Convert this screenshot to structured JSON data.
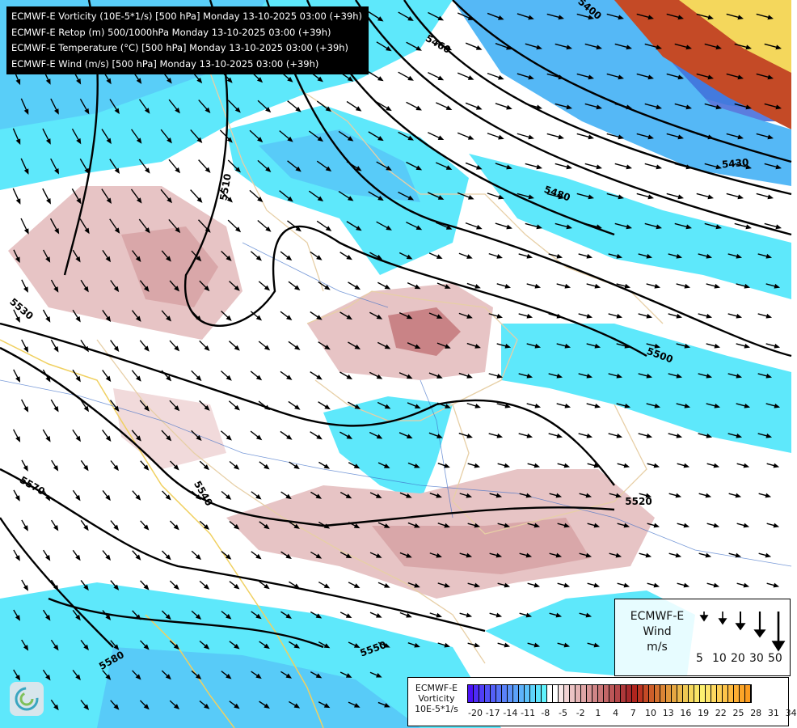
{
  "header": {
    "lines": [
      "ECMWF-E Vorticity (10E-5*1/s) [500 hPa] Monday 13-10-2025 03:00 (+39h)",
      "ECMWF-E Retop (m) 500/1000hPa Monday 13-10-2025 03:00 (+39h)",
      "ECMWF-E Temperature (°C) [500 hPa] Monday 13-10-2025 03:00 (+39h)",
      "ECMWF-E Wind (m/s) [500 hPa] Monday 13-10-2025 03:00 (+39h)"
    ]
  },
  "contour_labels": [
    "5400",
    "5460",
    "5430",
    "5480",
    "5510",
    "5530",
    "5500",
    "5520",
    "5540",
    "5570",
    "5550",
    "5580"
  ],
  "wind_legend": {
    "title": [
      "ECMWF-E",
      "Wind",
      "m/s"
    ],
    "speeds": [
      "5",
      "10",
      "20",
      "30",
      "50"
    ]
  },
  "vorticity_legend": {
    "title": [
      "ECMWF-E",
      "Vorticity",
      "10E-5*1/s"
    ],
    "ticks": [
      "-20",
      "-17",
      "-14",
      "-11",
      "-8",
      "-5",
      "-2",
      "1",
      "4",
      "7",
      "10",
      "13",
      "16",
      "19",
      "22",
      "25",
      "28",
      "31",
      "34"
    ],
    "colors": [
      "#4b12f5",
      "#4e2cf6",
      "#503ef7",
      "#5150f7",
      "#5460f8",
      "#5672f8",
      "#5a82f9",
      "#5b92f9",
      "#5ca2fa",
      "#5eb2fa",
      "#5dc2fb",
      "#5fd3fb",
      "#5ee3fc",
      "#5ff3fd",
      "#ffffff",
      "#ffffff",
      "#f8e6e6",
      "#f1d2d3",
      "#ebc3c4",
      "#e4b3b4",
      "#dea5a6",
      "#d79495",
      "#d08587",
      "#c97677",
      "#c26667",
      "#bc5758",
      "#b4474a",
      "#ad383a",
      "#a5282b",
      "#b0251e",
      "#bb3421",
      "#c44a26",
      "#cd5e2a",
      "#d4712f",
      "#da8435",
      "#e0963b",
      "#e6a742",
      "#ebb84a",
      "#efc853",
      "#f4d75c",
      "#f9e567",
      "#fcf070",
      "#fde56b",
      "#fdd960",
      "#fdcf55",
      "#fdc44a",
      "#fdb93f",
      "#fdae33",
      "#fca528",
      "#fc9c20"
    ]
  },
  "colors": {
    "cyan": "#5ee8fb",
    "blue_mid": "#55b8f6",
    "blue_dark": "#3e66d8",
    "pink": "#e7c4c5",
    "pink_dark": "#c98386",
    "border": "#e7cfa6",
    "river": "#3f6fc8"
  }
}
